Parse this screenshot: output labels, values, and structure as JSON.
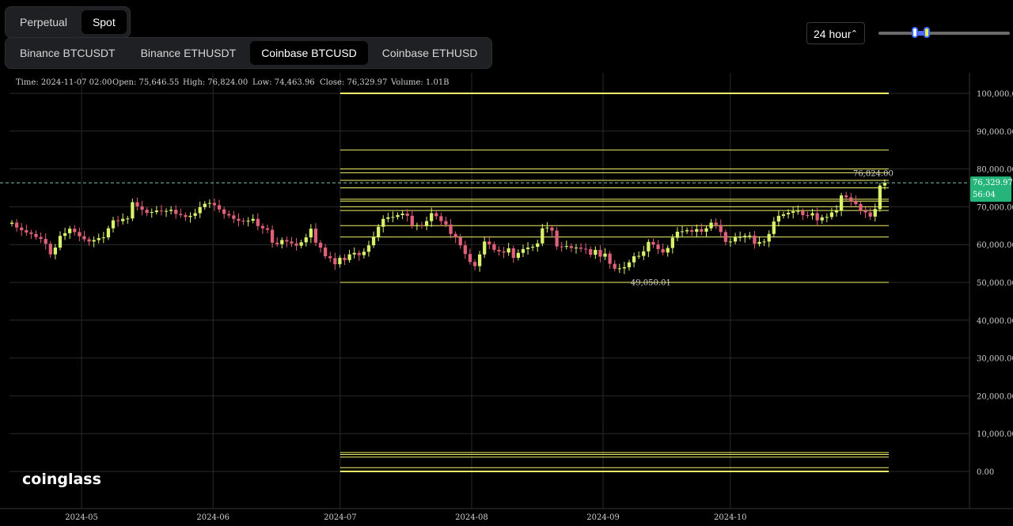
{
  "tabs": {
    "market_type": [
      {
        "label": "Perpetual",
        "active": false
      },
      {
        "label": "Spot",
        "active": true
      }
    ],
    "exchange_pair": [
      {
        "label": "Binance BTCUSDT",
        "active": false
      },
      {
        "label": "Binance ETHUSDT",
        "active": false
      },
      {
        "label": "Coinbase BTCUSD",
        "active": true
      },
      {
        "label": "Coinbase ETHUSD",
        "active": false
      }
    ]
  },
  "controls": {
    "period": "24 hour",
    "period_icon": "chevron-up-down-icon",
    "slider_fraction_start": 0.28,
    "slider_fraction_end": 0.37
  },
  "ohlc_info": {
    "time": "Time: 2024-11-07 02:00",
    "open": "Open: 75,646.55",
    "high": "High: 76,824.00",
    "low": "Low: 74,463.96",
    "close": "Close: 76,329.97",
    "volume": "Volume: 1.01B"
  },
  "price_tag": {
    "price": "76,329.97",
    "countdown": "56:04"
  },
  "annotations": {
    "high_label": "76,824.00",
    "low_label": "49,050.01"
  },
  "logo_text": "coinglass",
  "colors": {
    "up": "#d9f26b",
    "down": "#e0607a",
    "level": "#f3f36a",
    "tag": "#25b47a"
  },
  "chart_data": {
    "type": "candlestick",
    "x_ticks": [
      "2024-05",
      "2024-06",
      "2024-07",
      "2024-08",
      "2024-09",
      "2024-10"
    ],
    "y_ticks": [
      "100,000.00",
      "90,000.00",
      "80,000.00",
      "70,000.00",
      "60,000.00",
      "50,000.00",
      "40,000.00",
      "30,000.00",
      "20,000.00",
      "10,000.00",
      "0.00"
    ],
    "y_values": [
      100000,
      90000,
      80000,
      70000,
      60000,
      50000,
      40000,
      30000,
      20000,
      10000,
      0
    ],
    "ylim": [
      0,
      100000
    ],
    "x_start": "2024-04-14",
    "x_end": "2024-11-07",
    "grid": true,
    "close_series": [
      65800,
      64500,
      63800,
      63200,
      62800,
      62000,
      61500,
      60200,
      57400,
      59200,
      62300,
      63000,
      64200,
      63300,
      62200,
      61400,
      60800,
      61200,
      61700,
      61900,
      64300,
      66400,
      66200,
      66800,
      66900,
      71200,
      70100,
      69200,
      68400,
      68600,
      69000,
      68800,
      68900,
      69200,
      68100,
      67800,
      67300,
      67600,
      68300,
      69900,
      70800,
      71000,
      70400,
      69300,
      68100,
      67700,
      66800,
      66300,
      66100,
      66300,
      66800,
      64900,
      64300,
      63900,
      60500,
      60100,
      61200,
      60800,
      60300,
      59700,
      60600,
      61900,
      64200,
      60500,
      59200,
      56900,
      56400,
      54800,
      56500,
      55900,
      57400,
      57800,
      57200,
      58100,
      59800,
      62000,
      64700,
      66800,
      67200,
      67300,
      67800,
      68200,
      67600,
      65100,
      65100,
      64900,
      66200,
      68300,
      67500,
      66200,
      65300,
      62800,
      61900,
      59800,
      57500,
      55400,
      54300,
      57400,
      60800,
      60100,
      58600,
      58200,
      57900,
      59000,
      56500,
      57800,
      58800,
      59200,
      59400,
      60300,
      64300,
      64500,
      63700,
      59500,
      59400,
      59600,
      59100,
      59200,
      58900,
      58800,
      57300,
      58600,
      56800,
      57600,
      54900,
      53600,
      53700,
      54000,
      55300,
      56900,
      57000,
      58200,
      60700,
      60000,
      58800,
      57900,
      59100,
      61800,
      63400,
      63500,
      63800,
      63400,
      64100,
      63400,
      64300,
      65800,
      65200,
      63300,
      60700,
      60800,
      61900,
      62000,
      62300,
      62400,
      60200,
      60700,
      60800,
      62800,
      66100,
      67600,
      68000,
      68400,
      68800,
      68900,
      67800,
      67700,
      68300,
      66400,
      67200,
      67300,
      68500,
      69000,
      73000,
      72500,
      71500,
      70700,
      69000,
      68500,
      67400,
      69400,
      75600,
      76330
    ],
    "price_levels": [
      100000,
      85000,
      80000,
      79000,
      77000,
      75000,
      72000,
      71500,
      70000,
      69000,
      65000,
      62000,
      50000,
      5000,
      4500,
      3800,
      1000,
      0
    ]
  }
}
